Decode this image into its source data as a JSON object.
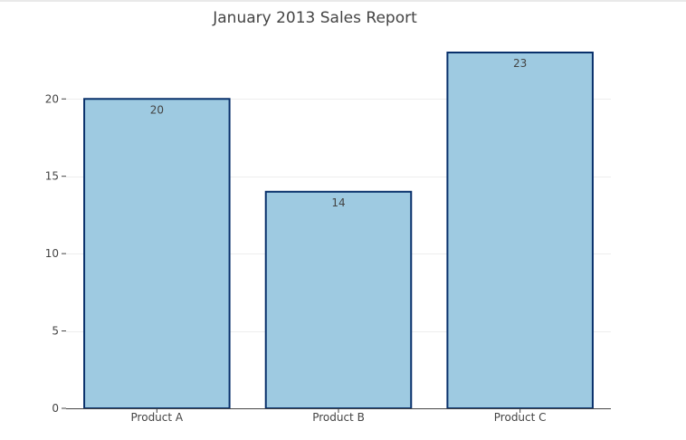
{
  "chart_data": {
    "type": "bar",
    "title": "January 2013 Sales Report",
    "xlabel": "",
    "ylabel": "",
    "categories": [
      "Product A",
      "Product B",
      "Product C"
    ],
    "values": [
      20,
      14,
      23
    ],
    "data_labels": [
      "20",
      "14",
      "23"
    ],
    "ylim": [
      0,
      23
    ],
    "y_ticks": [
      0,
      5,
      10,
      15,
      20
    ],
    "y_tick_labels": [
      "0",
      "5",
      "10",
      "15",
      "20"
    ],
    "grid": "horizontal",
    "legend": "none",
    "colors": {
      "bar_fill": "#9ecae1",
      "bar_edge": "#08306b",
      "grid": "#eeeeee",
      "axis": "#444444",
      "text": "#444444"
    }
  }
}
